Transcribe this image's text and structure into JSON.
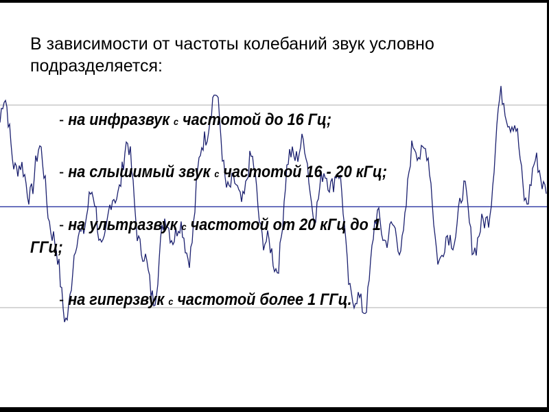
{
  "slide": {
    "intro": "В зависимости от частоты колебаний звук условно подразделяется:",
    "items": [
      {
        "prefix": "- ",
        "main": "на инфразвук ",
        "c": "с",
        "rest": " частотой до 16 Гц;"
      },
      {
        "prefix": "- ",
        "main": "на слышимый звук ",
        "c": "с",
        "rest": " частотой  16 - 20 кГц;"
      },
      {
        "prefix": "- ",
        "main": "на ультразвук ",
        "c": "с",
        "rest": " частотой от 20 кГц до 1",
        "cont": "ГГц;"
      },
      {
        "prefix": "- ",
        "main": "на гиперзвук ",
        "c": "с",
        "rest": " частотой более 1 ГГц."
      }
    ]
  },
  "colors": {
    "wave": "#1a1f6e",
    "axis": "#3a44a8",
    "grid": "#c8c8c8",
    "frame": "#000000"
  }
}
